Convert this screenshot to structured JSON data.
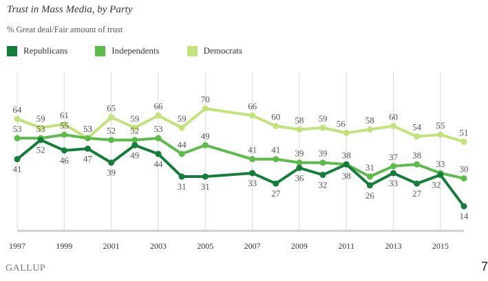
{
  "page_number": "7",
  "brand": "GALLUP",
  "colors": {
    "republicans": "#137d3a",
    "independents": "#5cbb4a",
    "democrats": "#c2e27a",
    "grid": "#d9d9d9",
    "baseline": "#cccccc"
  },
  "chart_data": {
    "type": "line",
    "title": "Trust in Mass Media, by Party",
    "subtitle": "% Great deal/Fair amount of trust",
    "xlabel": "",
    "ylabel": "",
    "xlim": [
      1997,
      2016
    ],
    "ylim": [
      0,
      90
    ],
    "grid": "vertical",
    "legend": "top-left",
    "x_ticks": [
      "1997",
      "1999",
      "2001",
      "2003",
      "2005",
      "2007",
      "2009",
      "2011",
      "2013",
      "2015"
    ],
    "x": [
      1997,
      1998,
      1999,
      2000,
      2001,
      2002,
      2003,
      2004,
      2005,
      2007,
      2008,
      2009,
      2010,
      2011,
      2012,
      2013,
      2014,
      2015,
      2016
    ],
    "series": [
      {
        "name": "Republicans",
        "color_key": "republicans",
        "values": [
          41,
          52,
          46,
          47,
          39,
          49,
          44,
          31,
          31,
          33,
          27,
          36,
          32,
          38,
          26,
          33,
          27,
          32,
          14
        ]
      },
      {
        "name": "Independents",
        "color_key": "independents",
        "values": [
          53,
          53,
          55,
          53,
          52,
          52,
          53,
          44,
          49,
          41,
          41,
          39,
          39,
          38,
          31,
          37,
          38,
          33,
          30
        ]
      },
      {
        "name": "Democrats",
        "color_key": "democrats",
        "values": [
          64,
          59,
          61,
          53,
          65,
          59,
          66,
          59,
          70,
          66,
          60,
          58,
          59,
          56,
          58,
          60,
          54,
          55,
          51
        ]
      }
    ]
  }
}
